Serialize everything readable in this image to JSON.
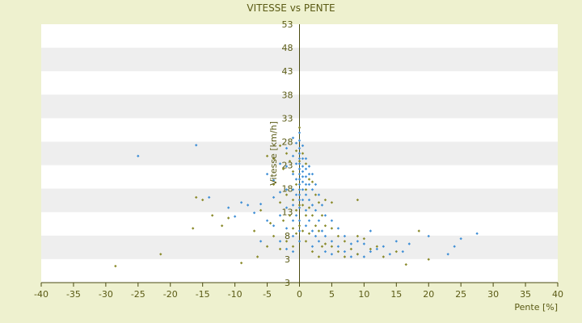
{
  "chart_data": {
    "type": "scatter",
    "title": "VITESSE vs PENTE",
    "xlabel": "Pente [%]",
    "ylabel": "Vitesse [km/h]",
    "xlim": [
      -40,
      40
    ],
    "ylim": [
      3,
      53
    ],
    "x_ticks": [
      "-40",
      "-35",
      "-30",
      "-25",
      "-20",
      "-15",
      "-10",
      "-5",
      "0",
      "5",
      "10",
      "15",
      "20",
      "25",
      "30",
      "35",
      "40"
    ],
    "y_ticks": [
      "3",
      "3",
      "8",
      "13",
      "18",
      "23",
      "28",
      "33",
      "38",
      "43",
      "48",
      "53"
    ],
    "grid": "horizontal alternating bands",
    "colors": {
      "series_a": "#3f8fd6",
      "series_b": "#8a8a2a",
      "axis": "#4a4a10",
      "band": "#eeeeee"
    },
    "series": [
      {
        "color": "#3f8fd6",
        "points": [
          [
            -25,
            27.5
          ],
          [
            -16,
            29.6
          ],
          [
            -14,
            19.5
          ],
          [
            -11,
            17.5
          ],
          [
            -10,
            15.8
          ],
          [
            -9,
            18.5
          ],
          [
            -8,
            18
          ],
          [
            -7,
            16.5
          ],
          [
            -6,
            18.2
          ],
          [
            -6,
            11
          ],
          [
            -5,
            24
          ],
          [
            -5,
            15
          ],
          [
            -4,
            22.8
          ],
          [
            -4,
            19.5
          ],
          [
            -4,
            14
          ],
          [
            -3,
            26
          ],
          [
            -3,
            20.5
          ],
          [
            -3,
            16
          ],
          [
            -3,
            11
          ],
          [
            -2,
            29
          ],
          [
            -2,
            25.5
          ],
          [
            -2,
            21
          ],
          [
            -2,
            17.5
          ],
          [
            -2,
            13.5
          ],
          [
            -2,
            9.5
          ],
          [
            -1,
            31
          ],
          [
            -1,
            27.5
          ],
          [
            -1,
            24
          ],
          [
            -1,
            21
          ],
          [
            -1,
            18
          ],
          [
            -1,
            15
          ],
          [
            -1,
            12
          ],
          [
            -1,
            9
          ],
          [
            -0.5,
            30
          ],
          [
            -0.5,
            26
          ],
          [
            -0.5,
            23
          ],
          [
            -0.5,
            20
          ],
          [
            -0.5,
            16
          ],
          [
            0,
            32
          ],
          [
            0,
            30.5
          ],
          [
            0,
            29
          ],
          [
            0,
            28
          ],
          [
            0,
            27
          ],
          [
            0,
            26
          ],
          [
            0,
            25
          ],
          [
            0,
            24
          ],
          [
            0,
            23
          ],
          [
            0,
            22
          ],
          [
            0,
            21
          ],
          [
            0,
            20
          ],
          [
            0,
            19
          ],
          [
            0,
            17.5
          ],
          [
            0,
            15
          ],
          [
            0,
            13
          ],
          [
            0,
            11
          ],
          [
            0.5,
            29.5
          ],
          [
            0.5,
            27
          ],
          [
            0.5,
            25.5
          ],
          [
            0.5,
            24.5
          ],
          [
            0.5,
            23.5
          ],
          [
            0.5,
            22.5
          ],
          [
            0.5,
            21
          ],
          [
            0.5,
            19
          ],
          [
            1,
            27
          ],
          [
            1,
            25
          ],
          [
            1,
            23.5
          ],
          [
            1,
            22
          ],
          [
            1,
            20
          ],
          [
            1,
            17
          ],
          [
            1,
            14
          ],
          [
            1.5,
            25.5
          ],
          [
            1.5,
            24
          ],
          [
            1.5,
            22
          ],
          [
            1.5,
            19
          ],
          [
            1.5,
            15
          ],
          [
            2,
            24
          ],
          [
            2,
            21
          ],
          [
            2,
            18
          ],
          [
            2,
            13
          ],
          [
            2,
            10
          ],
          [
            2.5,
            22
          ],
          [
            2.5,
            17
          ],
          [
            2.5,
            12
          ],
          [
            3,
            20
          ],
          [
            3,
            15
          ],
          [
            3,
            11
          ],
          [
            3.5,
            18
          ],
          [
            3.5,
            13
          ],
          [
            4,
            16
          ],
          [
            4,
            12
          ],
          [
            4,
            9
          ],
          [
            5,
            15
          ],
          [
            5,
            11
          ],
          [
            5,
            8.5
          ],
          [
            6,
            13.5
          ],
          [
            6,
            10
          ],
          [
            7,
            12
          ],
          [
            7,
            9
          ],
          [
            8,
            10.5
          ],
          [
            8,
            8
          ],
          [
            9,
            11
          ],
          [
            9,
            8.5
          ],
          [
            10,
            10.5
          ],
          [
            10,
            8
          ],
          [
            11,
            13
          ],
          [
            11,
            9
          ],
          [
            12,
            9.5
          ],
          [
            13,
            10
          ],
          [
            14,
            8.5
          ],
          [
            15,
            11
          ],
          [
            16,
            9
          ],
          [
            17,
            10.5
          ],
          [
            20,
            12
          ],
          [
            23,
            8.5
          ],
          [
            24,
            10
          ],
          [
            25,
            11.5
          ],
          [
            27.5,
            12.5
          ]
        ]
      },
      {
        "color": "#8a8a2a",
        "points": [
          [
            -28.5,
            6.2
          ],
          [
            -21.5,
            8.5
          ],
          [
            -16.5,
            13.5
          ],
          [
            -16,
            19.5
          ],
          [
            -15,
            19
          ],
          [
            -13.5,
            16
          ],
          [
            -12,
            14
          ],
          [
            -11,
            15.5
          ],
          [
            -9,
            6.8
          ],
          [
            -7,
            13
          ],
          [
            -6.5,
            8
          ],
          [
            -6,
            17
          ],
          [
            -5,
            27.5
          ],
          [
            -5,
            10
          ],
          [
            -4.5,
            14.5
          ],
          [
            -4,
            27
          ],
          [
            -4,
            22
          ],
          [
            -4,
            12
          ],
          [
            -3,
            29.5
          ],
          [
            -3,
            18.5
          ],
          [
            -3,
            9.5
          ],
          [
            -2.5,
            25
          ],
          [
            -2.5,
            15
          ],
          [
            -2,
            28
          ],
          [
            -2,
            20
          ],
          [
            -2,
            11
          ],
          [
            -1.5,
            26.5
          ],
          [
            -1.5,
            16
          ],
          [
            -1,
            24.5
          ],
          [
            -1,
            19
          ],
          [
            -1,
            13.5
          ],
          [
            -1,
            10
          ],
          [
            -0.5,
            28.5
          ],
          [
            -0.5,
            22
          ],
          [
            -0.5,
            17
          ],
          [
            -0.5,
            12.5
          ],
          [
            0,
            33
          ],
          [
            0,
            26.5
          ],
          [
            0,
            18
          ],
          [
            0,
            14
          ],
          [
            0.5,
            28
          ],
          [
            0.5,
            18
          ],
          [
            0.5,
            13
          ],
          [
            1,
            26
          ],
          [
            1,
            21
          ],
          [
            1,
            16
          ],
          [
            1,
            11
          ],
          [
            1.5,
            23
          ],
          [
            1.5,
            17.5
          ],
          [
            1.5,
            12.5
          ],
          [
            2,
            22.5
          ],
          [
            2,
            16
          ],
          [
            2,
            9
          ],
          [
            2.5,
            20
          ],
          [
            2.5,
            14
          ],
          [
            3,
            18.5
          ],
          [
            3,
            13
          ],
          [
            3,
            8
          ],
          [
            3.5,
            16
          ],
          [
            3.5,
            10
          ],
          [
            4,
            19
          ],
          [
            4,
            14
          ],
          [
            4,
            10.5
          ],
          [
            5,
            18.5
          ],
          [
            5,
            13.5
          ],
          [
            5,
            10
          ],
          [
            6,
            12
          ],
          [
            6,
            9
          ],
          [
            7,
            11
          ],
          [
            7,
            8
          ],
          [
            8,
            9.5
          ],
          [
            9,
            12
          ],
          [
            9,
            19
          ],
          [
            9,
            8.5
          ],
          [
            10,
            11.5
          ],
          [
            11,
            9.5
          ],
          [
            12,
            10
          ],
          [
            13,
            8
          ],
          [
            15,
            9
          ],
          [
            16.5,
            6.5
          ],
          [
            18.5,
            13
          ],
          [
            20,
            7.5
          ]
        ]
      }
    ]
  }
}
